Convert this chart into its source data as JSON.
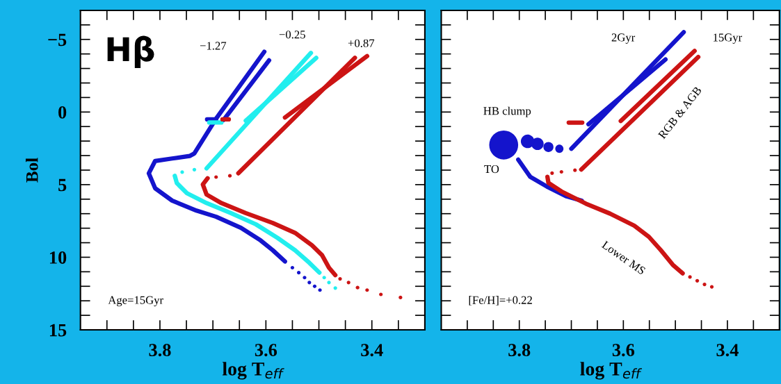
{
  "chart_data": [
    {
      "type": "line",
      "xlabel": "log T$_{eff}$",
      "ylabel": "Bol",
      "xlim": [
        3.95,
        3.3
      ],
      "ylim": [
        15,
        -7
      ],
      "xticks": [
        {
          "value": 3.9,
          "label": null
        },
        {
          "value": 3.85,
          "label": null
        },
        3.8,
        {
          "value": 3.75,
          "label": null
        },
        {
          "value": 3.7,
          "label": null
        },
        {
          "value": 3.65,
          "label": null
        },
        3.6,
        {
          "value": 3.55,
          "label": null
        },
        {
          "value": 3.5,
          "label": null
        },
        {
          "value": 3.45,
          "label": null
        },
        3.4,
        {
          "value": 3.35,
          "label": null
        }
      ],
      "yticks": [
        {
          "value": -6,
          "label": null
        },
        -5,
        {
          "value": -4,
          "label": null
        },
        {
          "value": -3,
          "label": null
        },
        {
          "value": -2,
          "label": null
        },
        {
          "value": -1,
          "label": null
        },
        0,
        {
          "value": 1,
          "label": null
        },
        {
          "value": 2,
          "label": null
        },
        {
          "value": 3,
          "label": null
        },
        {
          "value": 4,
          "label": null
        },
        5,
        {
          "value": 6,
          "label": null
        },
        {
          "value": 7,
          "label": null
        },
        {
          "value": 8,
          "label": null
        },
        {
          "value": 9,
          "label": null
        },
        10,
        {
          "value": 11,
          "label": null
        },
        {
          "value": 12,
          "label": null
        },
        {
          "value": 13,
          "label": null
        },
        {
          "value": 14,
          "label": null
        },
        15
      ],
      "annotations": [
        "Hβ",
        "−1.27",
        "−0.25",
        "+0.87",
        "Age=15Gyr"
      ],
      "series": [
        {
          "type": "line",
          "color": "#1414cc",
          "x": [
            3.603,
            3.694,
            3.735,
            3.744,
            3.777,
            3.809,
            3.821,
            3.809,
            3.777,
            3.731,
            3.694,
            3.647,
            3.61,
            3.587,
            3.564
          ],
          "values": [
            -4.15,
            0.46,
            2.85,
            3.03,
            3.2,
            3.37,
            4.22,
            5.25,
            6.1,
            6.79,
            7.21,
            7.98,
            8.84,
            9.52,
            10.29
          ]
        },
        {
          "type": "scatter",
          "color": "#1414cc",
          "x": [
            3.55,
            3.538,
            3.527,
            3.518,
            3.508,
            3.498
          ],
          "values": [
            10.72,
            11.06,
            11.4,
            11.74,
            12.0,
            12.26
          ]
        },
        {
          "type": "line",
          "color": "#1414cc",
          "x": [
            3.594,
            3.68
          ],
          "values": [
            -3.56,
            0.55
          ]
        },
        {
          "type": "line",
          "color": "#1414cc",
          "x": [
            3.711,
            3.694
          ],
          "values": [
            0.51,
            0.51
          ]
        },
        {
          "type": "line",
          "color": "#22eeee",
          "x": [
            3.515,
            3.712
          ],
          "values": [
            -4.07,
            3.88
          ]
        },
        {
          "type": "scatter",
          "color": "#22eeee",
          "x": [
            3.735,
            3.758
          ],
          "values": [
            3.97,
            4.14
          ]
        },
        {
          "type": "line",
          "color": "#22eeee",
          "x": [
            3.772,
            3.768,
            3.749,
            3.712,
            3.666,
            3.619,
            3.578,
            3.545,
            3.518,
            3.499
          ],
          "values": [
            4.39,
            4.9,
            5.59,
            6.27,
            6.96,
            7.73,
            8.67,
            9.52,
            10.38,
            11.06
          ]
        },
        {
          "type": "scatter",
          "color": "#22eeee",
          "x": [
            3.49,
            3.481,
            3.469
          ],
          "values": [
            11.4,
            11.74,
            12.12
          ]
        },
        {
          "type": "line",
          "color": "#22eeee",
          "x": [
            3.505,
            3.638
          ],
          "values": [
            -3.73,
            0.6
          ]
        },
        {
          "type": "line",
          "color": "#22eeee",
          "x": [
            3.707,
            3.684
          ],
          "values": [
            0.72,
            0.72
          ]
        },
        {
          "type": "line",
          "color": "#cc1414",
          "x": [
            3.432,
            3.652
          ],
          "values": [
            -3.73,
            4.22
          ]
        },
        {
          "type": "scatter",
          "color": "#cc1414",
          "x": [
            3.668,
            3.694
          ],
          "values": [
            4.39,
            4.48
          ]
        },
        {
          "type": "line",
          "color": "#cc1414",
          "x": [
            3.71,
            3.719,
            3.712,
            3.684,
            3.638,
            3.587,
            3.545,
            3.513,
            3.494,
            3.481,
            3.469
          ],
          "values": [
            4.56,
            4.99,
            5.68,
            6.27,
            6.96,
            7.64,
            8.32,
            9.18,
            9.86,
            10.72,
            11.23
          ]
        },
        {
          "type": "scatter",
          "color": "#cc1414",
          "x": [
            3.46,
            3.444,
            3.427,
            3.409,
            3.383,
            3.346
          ],
          "values": [
            11.49,
            11.74,
            12.09,
            12.26,
            12.56,
            12.77
          ]
        },
        {
          "type": "line",
          "color": "#cc1414",
          "x": [
            3.409,
            3.564
          ],
          "values": [
            -3.85,
            0.38
          ]
        },
        {
          "type": "line",
          "color": "#cc1414",
          "x": [
            3.682,
            3.67
          ],
          "values": [
            0.51,
            0.51
          ]
        }
      ]
    },
    {
      "type": "line",
      "xlabel": "log T$_{eff}$",
      "xlim": [
        3.95,
        3.3
      ],
      "ylim": [
        15,
        -7
      ],
      "tick_labels": "x",
      "xticks": [
        {
          "value": 3.9,
          "label": null
        },
        {
          "value": 3.85,
          "label": null
        },
        3.8,
        {
          "value": 3.75,
          "label": null
        },
        {
          "value": 3.7,
          "label": null
        },
        {
          "value": 3.65,
          "label": null
        },
        3.6,
        {
          "value": 3.55,
          "label": null
        },
        {
          "value": 3.5,
          "label": null
        },
        {
          "value": 3.45,
          "label": null
        },
        3.4,
        {
          "value": 3.35,
          "label": null
        }
      ],
      "yticks": [
        {
          "value": -6,
          "label": null
        },
        {
          "value": -5,
          "label": null
        },
        {
          "value": -4,
          "label": null
        },
        {
          "value": -3,
          "label": null
        },
        {
          "value": -2,
          "label": null
        },
        {
          "value": -1,
          "label": null
        },
        {
          "value": 0,
          "label": null
        },
        {
          "value": 1,
          "label": null
        },
        {
          "value": 2,
          "label": null
        },
        {
          "value": 3,
          "label": null
        },
        {
          "value": 4,
          "label": null
        },
        {
          "value": 5,
          "label": null
        },
        {
          "value": 6,
          "label": null
        },
        {
          "value": 7,
          "label": null
        },
        {
          "value": 8,
          "label": null
        },
        {
          "value": 9,
          "label": null
        },
        {
          "value": 10,
          "label": null
        },
        {
          "value": 11,
          "label": null
        },
        {
          "value": 12,
          "label": null
        },
        {
          "value": 13,
          "label": null
        },
        {
          "value": 14,
          "label": null
        },
        {
          "value": 15,
          "label": null
        }
      ],
      "annotations": [
        "2Gyr",
        "15Gyr",
        "HB clump",
        "TO",
        "RGB & AGB",
        "Lower MS",
        "[Fe/H]=+0.22"
      ],
      "series": [
        {
          "type": "line",
          "color": "#1414cc",
          "x": [
            3.484,
            3.7
          ],
          "values": [
            -5.5,
            2.53
          ]
        },
        {
          "type": "bubble",
          "color": "#1414cc",
          "x": [
            3.723,
            3.744,
            3.765,
            3.784,
            3.83
          ],
          "values": [
            2.53,
            2.41,
            2.19,
            2.02,
            2.27
          ],
          "sizes": [
            0.08,
            0.12,
            0.18,
            0.22,
            1
          ]
        },
        {
          "color": "#1414cc",
          "x": [
            3.802,
            3.779,
            3.747,
            3.709,
            3.68
          ],
          "values": [
            3.28,
            4.46,
            5.13,
            5.81,
            6.1
          ]
        },
        {
          "type": "line",
          "color": "#1414cc",
          "x": [
            3.519,
            3.667
          ],
          "values": [
            -3.62,
            0.84
          ]
        },
        {
          "type": "line",
          "color": "#cc1414",
          "x": [
            3.705,
            3.679
          ],
          "values": [
            0.73,
            0.73
          ]
        },
        {
          "type": "line",
          "color": "#cc1414",
          "x": [
            3.456,
            3.681
          ],
          "values": [
            -3.79,
            3.96
          ]
        },
        {
          "type": "scatter",
          "color": "#cc1414",
          "x": [
            3.693,
            3.719,
            3.737
          ],
          "values": [
            4.01,
            4.12,
            4.21
          ]
        },
        {
          "type": "line",
          "color": "#cc1414",
          "x": [
            3.746,
            3.744,
            3.719,
            3.672,
            3.626,
            3.579,
            3.551,
            3.528,
            3.505,
            3.486
          ],
          "values": [
            4.46,
            4.88,
            5.47,
            6.31,
            6.99,
            7.83,
            8.59,
            9.51,
            10.52,
            11.11
          ]
        },
        {
          "type": "scatter",
          "color": "#cc1414",
          "x": [
            3.472,
            3.458,
            3.444,
            3.43
          ],
          "values": [
            11.36,
            11.62,
            11.87,
            12.04
          ]
        },
        {
          "type": "line",
          "color": "#cc1414",
          "x": [
            3.463,
            3.605
          ],
          "values": [
            -4.21,
            0.62
          ]
        }
      ]
    }
  ]
}
